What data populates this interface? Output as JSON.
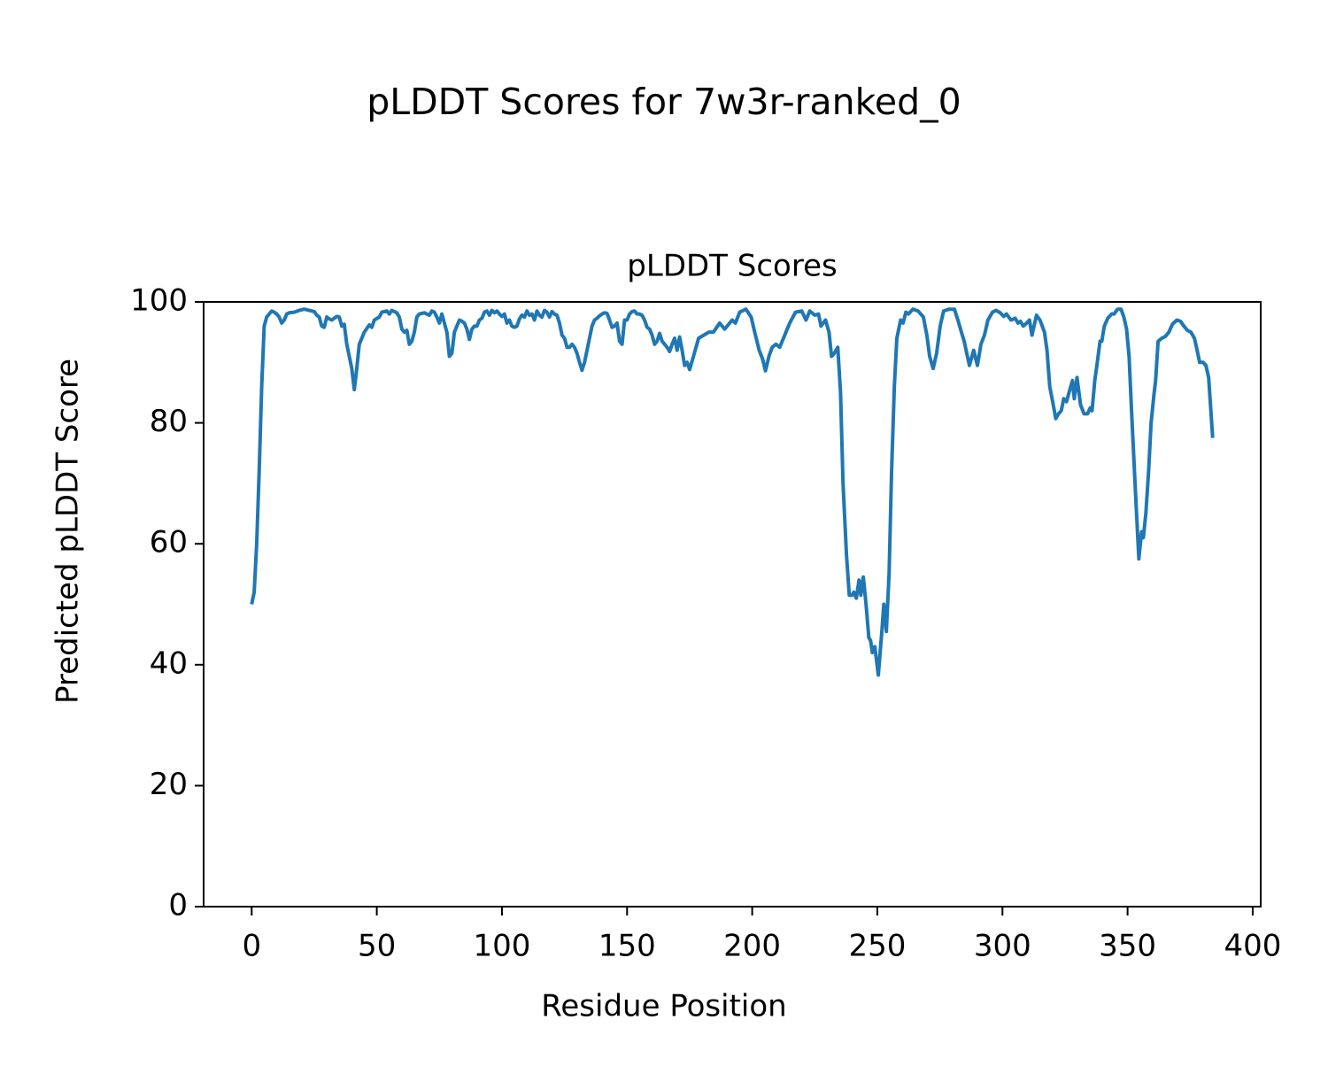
{
  "chart_data": {
    "type": "line",
    "title": "pLDDT Scores for 7w3r-ranked_0",
    "subtitle": "pLDDT Scores",
    "xlabel": "Residue Position",
    "ylabel": "Predicted pLDDT Score",
    "color": "#1f77b4",
    "xlim": [
      -19.2,
      403.2
    ],
    "ylim": [
      0,
      100
    ],
    "xticks": [
      0,
      50,
      100,
      150,
      200,
      250,
      300,
      350,
      400
    ],
    "yticks": [
      0,
      20,
      40,
      60,
      80,
      100
    ],
    "x": [
      0,
      1,
      2,
      3,
      4,
      5,
      6,
      7,
      8,
      9,
      10,
      11,
      12,
      13,
      14,
      15,
      17,
      19,
      21,
      23,
      25,
      26,
      27,
      28,
      29,
      30,
      31,
      32,
      33,
      34,
      35,
      36,
      37,
      38,
      39,
      40,
      41,
      42,
      43,
      45,
      47,
      48,
      49,
      51,
      52,
      54,
      55,
      56,
      58,
      59,
      60,
      61,
      62,
      63,
      64,
      65,
      66,
      67,
      69,
      71,
      72,
      73,
      74,
      75,
      76,
      77,
      78,
      79,
      80,
      81,
      82,
      83,
      84,
      85,
      86,
      87,
      88,
      89,
      90,
      91,
      92,
      93,
      94,
      95,
      96,
      97,
      98,
      99,
      100,
      101,
      102,
      103,
      104,
      105,
      106,
      107,
      108,
      109,
      110,
      111,
      112,
      113,
      114,
      115,
      116,
      117,
      118,
      119,
      120,
      121,
      122,
      123,
      124,
      125,
      126,
      127,
      128,
      129,
      130,
      131,
      132,
      133,
      134,
      135,
      136,
      137,
      138,
      139,
      140,
      141,
      142,
      143,
      144,
      145,
      146,
      147,
      148,
      149,
      150,
      151,
      152,
      153,
      154,
      155,
      156,
      157,
      158,
      159,
      160,
      161,
      162,
      163,
      164,
      165,
      166,
      167,
      168,
      169,
      170,
      171,
      172,
      173,
      174,
      175,
      178.6,
      182.7,
      184.5,
      187,
      189,
      192,
      193.3,
      195,
      197.5,
      199.6,
      201,
      202.8,
      204.2,
      205.3,
      206.7,
      208,
      209.5,
      211,
      213,
      215,
      217.3,
      219.8,
      221.5,
      223,
      225,
      226.5,
      227.5,
      229.3,
      230.7,
      231.7,
      232.8,
      234.2,
      235.3,
      236.3,
      237.7,
      238.8,
      239.9,
      240.6,
      241.6,
      242.7,
      243.4,
      244.4,
      245.5,
      246.6,
      247.3,
      248,
      249,
      250.4,
      251.9,
      252.6,
      253.6,
      254.7,
      255.7,
      256.8,
      257.8,
      259.3,
      260.3,
      261.4,
      262.4,
      264.2,
      266.3,
      268.4,
      269.8,
      270.9,
      272.3,
      273.7,
      275.1,
      276.5,
      278.7,
      280.8,
      282.2,
      283.6,
      284.7,
      286,
      286.8,
      288.5,
      290,
      291.4,
      292.8,
      294.2,
      296,
      297.4,
      299.1,
      300.5,
      301.6,
      303.4,
      305.1,
      306.2,
      307.2,
      308.3,
      309.7,
      310.8,
      311.8,
      313.6,
      315,
      316.8,
      317.8,
      318.9,
      320.3,
      321.3,
      322.4,
      323.5,
      324.5,
      325.6,
      326.6,
      328,
      328.7,
      329.8,
      331.2,
      332.6,
      334,
      335.1,
      335.8,
      336.9,
      337.9,
      339,
      339.7,
      340.7,
      342.1,
      343.6,
      344.6,
      346,
      347.4,
      348.5,
      349.6,
      350.6,
      351.7,
      353.1,
      354.5,
      355.6,
      356.3,
      357.3,
      358.4,
      359.4,
      360.5,
      361.2,
      362.2,
      363.7,
      365.1,
      366.5,
      367.9,
      369.7,
      371.1,
      372.5,
      373.9,
      375.3,
      376.7,
      377.8,
      378.8,
      380.2,
      381.3,
      382.4,
      384
    ],
    "values": [
      50,
      52,
      60,
      72,
      86,
      96,
      97.5,
      98,
      98.5,
      98.3,
      98,
      97.5,
      96.5,
      97,
      98,
      98.2,
      98.3,
      98.6,
      98.8,
      98.6,
      98.4,
      97.8,
      97.5,
      96,
      95.8,
      97.5,
      97.2,
      97,
      97.3,
      97.6,
      97.5,
      96,
      96.3,
      93,
      91,
      89,
      85.5,
      89,
      93,
      95,
      96.2,
      95.8,
      97,
      97.5,
      98.3,
      98.5,
      98,
      98.6,
      98.2,
      97.5,
      95.5,
      95,
      95.3,
      93,
      93.5,
      95,
      97.5,
      98,
      98.2,
      97.8,
      98.5,
      98.3,
      97.5,
      96.5,
      98,
      96.5,
      95,
      91,
      91.5,
      95,
      96,
      97,
      96.8,
      96.5,
      95.5,
      93.8,
      95.5,
      96,
      96,
      97,
      97.3,
      98.3,
      98.5,
      97.8,
      98.6,
      98.2,
      98.5,
      98,
      97.6,
      98,
      96.5,
      97,
      96,
      95.8,
      96,
      97.2,
      97.8,
      97.5,
      98.5,
      97.8,
      98,
      97,
      98.5,
      97.8,
      97.5,
      98.6,
      98.3,
      97.5,
      98.4,
      98,
      97.8,
      96.5,
      94.5,
      94,
      92.5,
      92.5,
      93,
      92.5,
      91.5,
      90,
      88.7,
      90,
      92,
      94,
      96,
      97,
      97.3,
      97.7,
      98,
      98.2,
      98.1,
      97,
      95.8,
      96,
      96.5,
      93.5,
      93,
      97,
      97,
      98,
      98.4,
      98.5,
      98,
      98,
      97.8,
      97,
      95.8,
      95.5,
      94.5,
      93,
      93.5,
      94.8,
      93.5,
      93,
      92.5,
      91.8,
      93,
      94,
      92,
      94.2,
      92,
      89.5,
      90,
      88.8,
      94,
      95,
      95,
      96.5,
      95.5,
      97,
      96.5,
      98.3,
      98.8,
      97.5,
      95,
      92,
      90.5,
      88.6,
      91,
      92.5,
      93,
      92.5,
      94.5,
      96.5,
      98.3,
      98.5,
      97,
      98.5,
      97.8,
      98,
      96,
      97,
      95,
      91,
      91.5,
      92.5,
      85,
      70,
      58,
      51.5,
      51.5,
      52,
      51,
      54,
      51.5,
      54.5,
      50,
      44.5,
      44,
      42,
      43,
      38.3,
      46,
      50,
      45.5,
      55,
      72,
      86,
      94,
      97,
      96.5,
      98.3,
      98,
      98.8,
      98.5,
      97.5,
      94.5,
      91,
      89,
      91.5,
      96,
      98.5,
      98.8,
      98.8,
      97,
      95,
      93.5,
      91,
      89.5,
      92,
      89.5,
      93,
      94.5,
      97,
      98.3,
      98.6,
      98.2,
      97.6,
      98,
      97,
      97.3,
      96.5,
      96.8,
      96,
      96.5,
      97,
      94.5,
      97.8,
      97,
      95,
      92,
      86,
      83,
      80.7,
      81.5,
      82,
      84,
      83.5,
      85,
      87,
      84,
      87.5,
      83,
      81.5,
      81.5,
      82.5,
      82,
      87,
      90,
      93.5,
      93.5,
      96,
      97.3,
      98,
      98,
      98.8,
      98.8,
      97.5,
      95.5,
      91,
      81,
      69,
      57.5,
      62,
      61,
      65,
      72,
      80,
      84.5,
      87,
      93.5,
      94,
      94.3,
      95,
      96.3,
      97,
      96.8,
      96,
      95.3,
      95,
      94,
      92,
      90,
      90,
      89.5,
      87.5,
      77.5
    ]
  }
}
